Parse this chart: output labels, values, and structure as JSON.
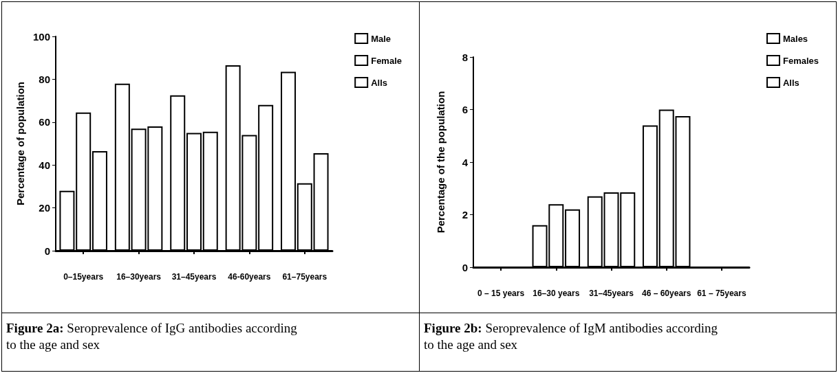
{
  "chart_data": [
    {
      "type": "bar",
      "ylabel": "Percentage of population",
      "categories": [
        "0–15years",
        "16–30years",
        "31–45years",
        "46-60years",
        "61–75years"
      ],
      "series": [
        {
          "name": "Male",
          "color": "#ffffff",
          "values": [
            28,
            78,
            72.5,
            86.5,
            83.5
          ]
        },
        {
          "name": "Female",
          "color": "#ffffff",
          "values": [
            64.5,
            57,
            55,
            54,
            31.5
          ]
        },
        {
          "name": "Alls",
          "color": "#ffffff",
          "values": [
            46.5,
            58,
            55.5,
            68,
            45.5
          ]
        }
      ],
      "ylim": [
        0,
        100
      ],
      "yticks": [
        0,
        20,
        40,
        60,
        80,
        100
      ],
      "grid": false,
      "legend": "right",
      "annotations": [
        "Figure 2a: Seroprevalence of IgG antibodies according to the age and sex"
      ]
    },
    {
      "type": "bar",
      "ylabel": "Percentage of the population",
      "categories": [
        "0 – 15 years",
        "16–30 years",
        "31–45years",
        "46 – 60years",
        "61 – 75years"
      ],
      "series": [
        {
          "name": "Males",
          "color": "#ffffff",
          "values": [
            0,
            1.6,
            2.7,
            5.4,
            0
          ]
        },
        {
          "name": "Females",
          "color": "#ffffff",
          "values": [
            0,
            2.4,
            2.85,
            6,
            0
          ]
        },
        {
          "name": "Alls",
          "color": "#ffffff",
          "values": [
            0,
            2.2,
            2.85,
            5.75,
            0
          ]
        }
      ],
      "ylim": [
        0,
        8
      ],
      "yticks": [
        0,
        2,
        4,
        6,
        8
      ],
      "grid": false,
      "legend": "right",
      "annotations": [
        "Figure 2b: Seroprevalence of IgM antibodies according to the age and sex"
      ]
    }
  ]
}
